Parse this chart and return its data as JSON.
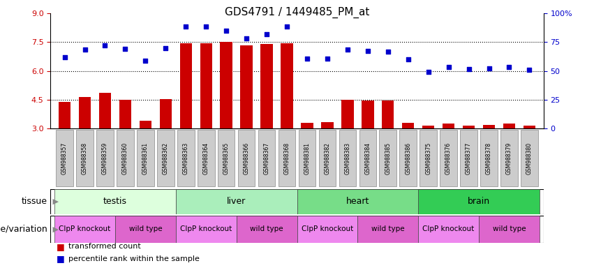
{
  "title": "GDS4791 / 1449485_PM_at",
  "samples": [
    "GSM988357",
    "GSM988358",
    "GSM988359",
    "GSM988360",
    "GSM988361",
    "GSM988362",
    "GSM988363",
    "GSM988364",
    "GSM988365",
    "GSM988366",
    "GSM988367",
    "GSM988368",
    "GSM988381",
    "GSM988382",
    "GSM988383",
    "GSM988384",
    "GSM988385",
    "GSM988386",
    "GSM988375",
    "GSM988376",
    "GSM988377",
    "GSM988378",
    "GSM988379",
    "GSM988380"
  ],
  "bar_values": [
    4.4,
    4.65,
    4.85,
    4.5,
    3.4,
    4.55,
    7.45,
    7.45,
    7.5,
    7.35,
    7.4,
    7.45,
    3.3,
    3.35,
    4.5,
    4.45,
    4.45,
    3.3,
    3.15,
    3.25,
    3.15,
    3.2,
    3.25,
    3.15
  ],
  "scatter_values": [
    6.7,
    7.1,
    7.35,
    7.15,
    6.55,
    7.2,
    8.3,
    8.3,
    8.1,
    7.7,
    7.9,
    8.3,
    6.65,
    6.65,
    7.1,
    7.05,
    7.0,
    6.6,
    5.95,
    6.2,
    6.1,
    6.15,
    6.2,
    6.05
  ],
  "bar_bottom": 3.0,
  "ylim": [
    3.0,
    9.0
  ],
  "yticks_left": [
    3.0,
    4.5,
    6.0,
    7.5,
    9.0
  ],
  "yticks_right": [
    0,
    25,
    50,
    75,
    100
  ],
  "hlines": [
    4.5,
    6.0,
    7.5
  ],
  "bar_color": "#cc0000",
  "scatter_color": "#0000cc",
  "plot_bg_color": "#ffffff",
  "tissue_groups": [
    {
      "label": "testis",
      "start": 0,
      "end": 6,
      "color": "#ddffdd"
    },
    {
      "label": "liver",
      "start": 6,
      "end": 12,
      "color": "#aaeebb"
    },
    {
      "label": "heart",
      "start": 12,
      "end": 18,
      "color": "#77dd88"
    },
    {
      "label": "brain",
      "start": 18,
      "end": 24,
      "color": "#33cc55"
    }
  ],
  "genotype_groups": [
    {
      "label": "ClpP knockout",
      "start": 0,
      "end": 3,
      "color": "#ee88ee"
    },
    {
      "label": "wild type",
      "start": 3,
      "end": 6,
      "color": "#dd66cc"
    },
    {
      "label": "ClpP knockout",
      "start": 6,
      "end": 9,
      "color": "#ee88ee"
    },
    {
      "label": "wild type",
      "start": 9,
      "end": 12,
      "color": "#dd66cc"
    },
    {
      "label": "ClpP knockout",
      "start": 12,
      "end": 15,
      "color": "#ee88ee"
    },
    {
      "label": "wild type",
      "start": 15,
      "end": 18,
      "color": "#dd66cc"
    },
    {
      "label": "ClpP knockout",
      "start": 18,
      "end": 21,
      "color": "#ee88ee"
    },
    {
      "label": "wild type",
      "start": 21,
      "end": 24,
      "color": "#dd66cc"
    }
  ],
  "legend_items": [
    {
      "label": "transformed count",
      "color": "#cc0000"
    },
    {
      "label": "percentile rank within the sample",
      "color": "#0000cc"
    }
  ],
  "tissue_row_label": "tissue",
  "genotype_row_label": "genotype/variation",
  "background_color": "#ffffff",
  "tick_label_color_left": "#cc0000",
  "tick_label_color_right": "#0000cc",
  "xtick_bg_color": "#cccccc",
  "arrow_color": "#888888"
}
